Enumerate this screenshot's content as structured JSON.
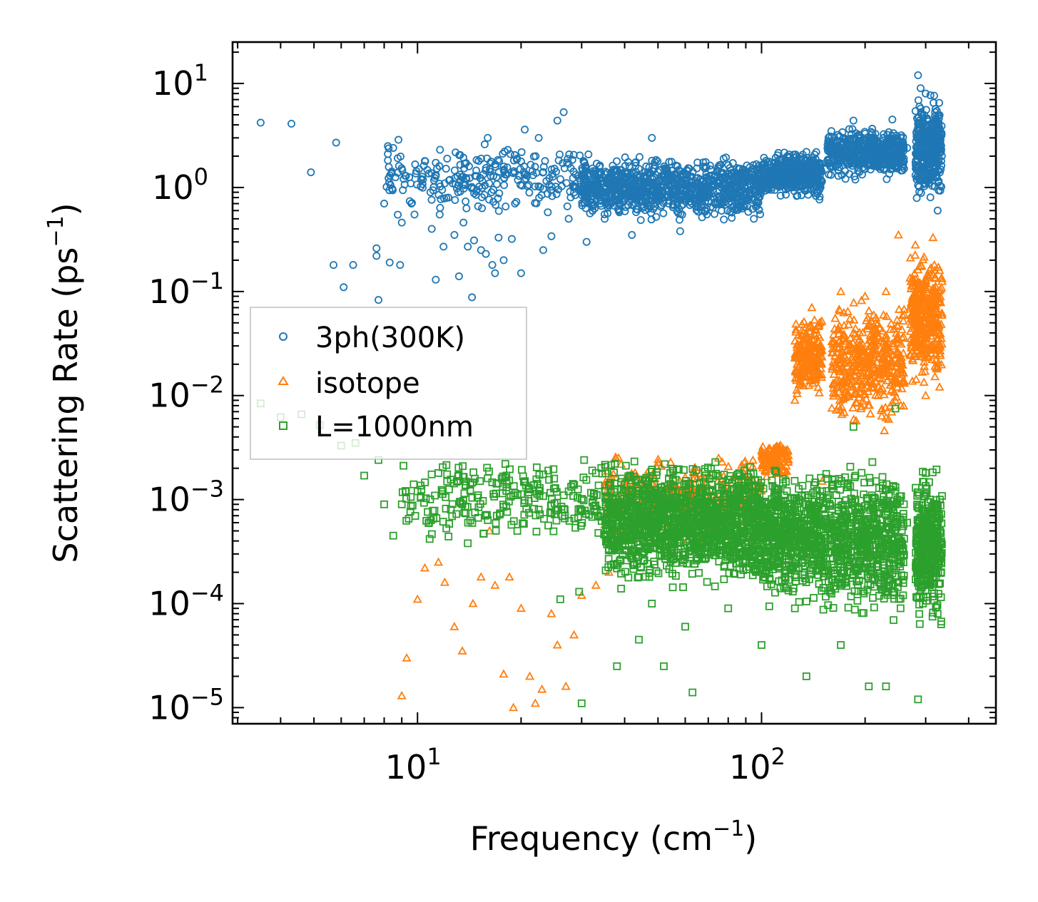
{
  "chart_data": {
    "type": "scatter",
    "title": "",
    "xlabel": "Frequency (cm",
    "xlabel_sup": "−1",
    "xlabel_end": ")",
    "ylabel": "Scattering Rate (ps",
    "ylabel_sup": "−1",
    "ylabel_end": ")",
    "x_scale": "log",
    "y_scale": "log",
    "xlim": [
      2.9,
      480
    ],
    "ylim": [
      7e-06,
      25
    ],
    "x_ticks": [
      {
        "base": "10",
        "exp": "1",
        "value": 10
      },
      {
        "base": "10",
        "exp": "2",
        "value": 100
      }
    ],
    "y_ticks": [
      {
        "base": "10",
        "exp": "1",
        "value": 10
      },
      {
        "base": "10",
        "exp": "0",
        "value": 1
      },
      {
        "base": "10",
        "exp": "−1",
        "value": 0.1
      },
      {
        "base": "10",
        "exp": "−2",
        "value": 0.01
      },
      {
        "base": "10",
        "exp": "−3",
        "value": 0.001
      },
      {
        "base": "10",
        "exp": "−4",
        "value": 0.0001
      },
      {
        "base": "10",
        "exp": "−5",
        "value": 1e-05
      }
    ],
    "legend_position": "center-left",
    "series": [
      {
        "name": "3ph(300K)",
        "marker": "circle",
        "color": "#1f77b4",
        "points": [
          [
            3.5,
            4.2
          ],
          [
            4.3,
            4.1
          ],
          [
            4.9,
            1.4
          ],
          [
            5.8,
            2.7
          ],
          [
            5.7,
            0.18
          ],
          [
            6.1,
            0.11
          ],
          [
            6.5,
            0.18
          ],
          [
            7.6,
            0.26
          ],
          [
            7.6,
            0.22
          ],
          [
            7.7,
            0.083
          ],
          [
            8.0,
            0.7
          ],
          [
            8.3,
            0.19
          ],
          [
            8.2,
            2.5
          ],
          [
            8.2,
            2.1
          ],
          [
            8.5,
            2.4
          ],
          [
            8.9,
            0.18
          ],
          [
            9.0,
            0.46
          ],
          [
            9.2,
            1.3
          ],
          [
            9.6,
            0.7
          ],
          [
            9.8,
            0.55
          ],
          [
            10.1,
            1.5
          ],
          [
            10.5,
            1.8
          ],
          [
            10.9,
            0.9
          ],
          [
            11.0,
            0.4
          ],
          [
            11.3,
            0.13
          ],
          [
            11.6,
            0.55
          ],
          [
            11.9,
            0.27
          ],
          [
            12.3,
            0.8
          ],
          [
            12.8,
            0.35
          ],
          [
            13.2,
            0.14
          ],
          [
            13.6,
            0.46
          ],
          [
            14.0,
            0.27
          ],
          [
            14.4,
            0.088
          ],
          [
            14.6,
            0.31
          ],
          [
            15.0,
            0.66
          ],
          [
            15.3,
            0.25
          ],
          [
            15.8,
            0.23
          ],
          [
            16.0,
            3.0
          ],
          [
            16.5,
            0.18
          ],
          [
            16.8,
            0.15
          ],
          [
            17.2,
            0.33
          ],
          [
            17.8,
            0.2
          ],
          [
            18.3,
            2.3
          ],
          [
            18.8,
            0.32
          ],
          [
            19.2,
            0.7
          ],
          [
            20.0,
            0.15
          ],
          [
            20.5,
            3.6
          ],
          [
            22.5,
            3.0
          ],
          [
            23.2,
            0.25
          ],
          [
            24.5,
            0.34
          ],
          [
            25.5,
            4.4
          ],
          [
            26.6,
            5.3
          ],
          [
            27.5,
            0.5
          ],
          [
            31.0,
            0.3
          ],
          [
            35.0,
            0.5
          ],
          [
            42.0,
            0.35
          ],
          [
            48.0,
            3.0
          ],
          [
            58.0,
            0.38
          ],
          [
            75.0,
            1.1
          ],
          [
            90.0,
            1.4
          ],
          [
            95.0,
            0.5
          ],
          [
            105.0,
            1.4
          ],
          [
            135.0,
            2.2
          ],
          [
            142.0,
            1.3
          ],
          [
            158.0,
            3.1
          ],
          [
            172.0,
            2.1
          ],
          [
            185.0,
            4.4
          ],
          [
            210.0,
            2.5
          ],
          [
            228.0,
            2.0
          ],
          [
            240.0,
            4.5
          ],
          [
            265.0,
            2.4
          ],
          [
            285.0,
            12
          ],
          [
            290.0,
            9
          ],
          [
            300.0,
            8
          ],
          [
            310.0,
            3.5
          ],
          [
            320.0,
            1.5
          ],
          [
            325.0,
            0.6
          ],
          [
            330.0,
            1.4
          ]
        ]
      },
      {
        "name": "isotope",
        "marker": "triangle",
        "color": "#ff7f0e",
        "points": [
          [
            9.0,
            1.3e-05
          ],
          [
            9.3,
            3e-05
          ],
          [
            10.0,
            0.00011
          ],
          [
            10.5,
            0.00022
          ],
          [
            11.5,
            0.00025
          ],
          [
            12.0,
            0.00016
          ],
          [
            12.8,
            6e-05
          ],
          [
            13.5,
            3.5e-05
          ],
          [
            14.5,
            0.0001
          ],
          [
            15.3,
            0.00018
          ],
          [
            16.2,
            0.0005
          ],
          [
            16.8,
            0.00015
          ],
          [
            17.8,
            2.1e-05
          ],
          [
            18.5,
            0.00018
          ],
          [
            19.0,
            1e-05
          ],
          [
            20.0,
            9e-05
          ],
          [
            21.2,
            2e-05
          ],
          [
            22.0,
            1.1e-05
          ],
          [
            23.0,
            1.5e-05
          ],
          [
            24.5,
            8e-05
          ],
          [
            25.5,
            4e-05
          ],
          [
            27.0,
            1.6e-05
          ],
          [
            28.5,
            5e-05
          ],
          [
            30.0,
            0.00012
          ],
          [
            33.0,
            0.00015
          ],
          [
            36.0,
            0.0002
          ],
          [
            40.0,
            0.0004
          ],
          [
            45.0,
            0.0008
          ],
          [
            55.0,
            0.0011
          ],
          [
            65.0,
            0.0016
          ],
          [
            75.0,
            0.0025
          ],
          [
            90.0,
            0.002
          ],
          [
            110.0,
            0.003
          ],
          [
            118.0,
            0.0021
          ],
          [
            125.0,
            0.009
          ],
          [
            140.0,
            0.07
          ],
          [
            150.0,
            0.0015
          ],
          [
            170.0,
            0.1
          ],
          [
            185.0,
            0.04
          ],
          [
            200.0,
            0.09
          ],
          [
            215.0,
            0.05
          ],
          [
            230.0,
            0.1
          ],
          [
            250.0,
            0.35
          ],
          [
            260.0,
            0.06
          ],
          [
            280.0,
            0.28
          ],
          [
            300.0,
            0.01
          ],
          [
            315.0,
            0.33
          ],
          [
            330.0,
            0.08
          ]
        ]
      },
      {
        "name": "L=1000nm",
        "marker": "square",
        "color": "#2ca02c",
        "points": [
          [
            3.5,
            0.0084
          ],
          [
            4.0,
            0.0062
          ],
          [
            4.6,
            0.0066
          ],
          [
            5.2,
            0.0052
          ],
          [
            6.0,
            0.0033
          ],
          [
            6.6,
            0.0035
          ],
          [
            7.0,
            0.0017
          ],
          [
            7.7,
            0.0024
          ],
          [
            8.0,
            0.0009
          ],
          [
            8.5,
            0.00045
          ],
          [
            9.0,
            0.0009
          ],
          [
            10.0,
            0.0012
          ],
          [
            10.8,
            0.0006
          ],
          [
            11.5,
            0.0018
          ],
          [
            12.5,
            0.0008
          ],
          [
            13.5,
            0.0009
          ],
          [
            14.0,
            0.00038
          ],
          [
            15.0,
            0.0011
          ],
          [
            16.0,
            0.0016
          ],
          [
            17.0,
            0.0007
          ],
          [
            18.0,
            0.0022
          ],
          [
            19.5,
            0.0005
          ],
          [
            21.0,
            0.0013
          ],
          [
            22.5,
            0.0008
          ],
          [
            24.0,
            0.0019
          ],
          [
            26.0,
            0.00011
          ],
          [
            27.5,
            0.0012
          ],
          [
            29.5,
            0.00013
          ],
          [
            30.0,
            1.1e-05
          ],
          [
            30.5,
            0.0024
          ],
          [
            33.0,
            0.0018
          ],
          [
            36.0,
            0.0009
          ],
          [
            38.0,
            2.5e-05
          ],
          [
            40.0,
            0.00042
          ],
          [
            44.0,
            4.5e-05
          ],
          [
            48.0,
            0.0001
          ],
          [
            52.0,
            2.5e-05
          ],
          [
            60.0,
            6e-05
          ],
          [
            63.0,
            1.4e-05
          ],
          [
            70.0,
            0.0004
          ],
          [
            80.0,
            9e-05
          ],
          [
            88.0,
            0.0009
          ],
          [
            100.0,
            4e-05
          ],
          [
            110.0,
            0.0011
          ],
          [
            125.0,
            9e-05
          ],
          [
            135.0,
            2e-05
          ],
          [
            150.0,
            0.0012
          ],
          [
            170.0,
            4e-05
          ],
          [
            185.0,
            0.005
          ],
          [
            205.0,
            1.6e-05
          ],
          [
            215.0,
            0.0009
          ],
          [
            230.0,
            1.6e-05
          ],
          [
            245.0,
            0.0075
          ],
          [
            265.0,
            0.0006
          ],
          [
            285.0,
            1.2e-05
          ],
          [
            300.0,
            0.0018
          ],
          [
            315.0,
            8.2e-05
          ],
          [
            325.0,
            8e-05
          ],
          [
            330.0,
            0.0005
          ]
        ]
      }
    ],
    "dense_bands": [
      {
        "series": 0,
        "x": [
          8,
          30
        ],
        "y": [
          0.5,
          3
        ],
        "n": 260,
        "seed": 11
      },
      {
        "series": 0,
        "x": [
          30,
          100
        ],
        "y": [
          0.45,
          2.2
        ],
        "n": 1000,
        "seed": 12
      },
      {
        "series": 0,
        "x": [
          100,
          150
        ],
        "y": [
          0.75,
          2.4
        ],
        "n": 450,
        "seed": 13
      },
      {
        "series": 0,
        "x": [
          155,
          260
        ],
        "y": [
          1.1,
          4.2
        ],
        "n": 550,
        "seed": 14
      },
      {
        "series": 0,
        "x": [
          280,
          335
        ],
        "y": [
          0.6,
          10
        ],
        "n": 350,
        "seed": 15
      },
      {
        "series": 1,
        "x": [
          35,
          100
        ],
        "y": [
          0.0003,
          0.003
        ],
        "n": 420,
        "seed": 21
      },
      {
        "series": 1,
        "x": [
          100,
          120
        ],
        "y": [
          0.0015,
          0.004
        ],
        "n": 120,
        "seed": 22
      },
      {
        "series": 1,
        "x": [
          125,
          150
        ],
        "y": [
          0.008,
          0.07
        ],
        "n": 220,
        "seed": 23
      },
      {
        "series": 1,
        "x": [
          160,
          260
        ],
        "y": [
          0.004,
          0.1
        ],
        "n": 450,
        "seed": 24
      },
      {
        "series": 1,
        "x": [
          270,
          335
        ],
        "y": [
          0.01,
          0.3
        ],
        "n": 380,
        "seed": 25
      },
      {
        "series": 2,
        "x": [
          9,
          35
        ],
        "y": [
          0.00035,
          0.003
        ],
        "n": 240,
        "seed": 31
      },
      {
        "series": 2,
        "x": [
          35,
          100
        ],
        "y": [
          0.00012,
          0.003
        ],
        "n": 1300,
        "seed": 32
      },
      {
        "series": 2,
        "x": [
          100,
          150
        ],
        "y": [
          8e-05,
          0.0025
        ],
        "n": 550,
        "seed": 33
      },
      {
        "series": 2,
        "x": [
          150,
          260
        ],
        "y": [
          6e-05,
          0.003
        ],
        "n": 650,
        "seed": 34
      },
      {
        "series": 2,
        "x": [
          280,
          335
        ],
        "y": [
          5e-05,
          0.0025
        ],
        "n": 380,
        "seed": 35
      }
    ]
  }
}
